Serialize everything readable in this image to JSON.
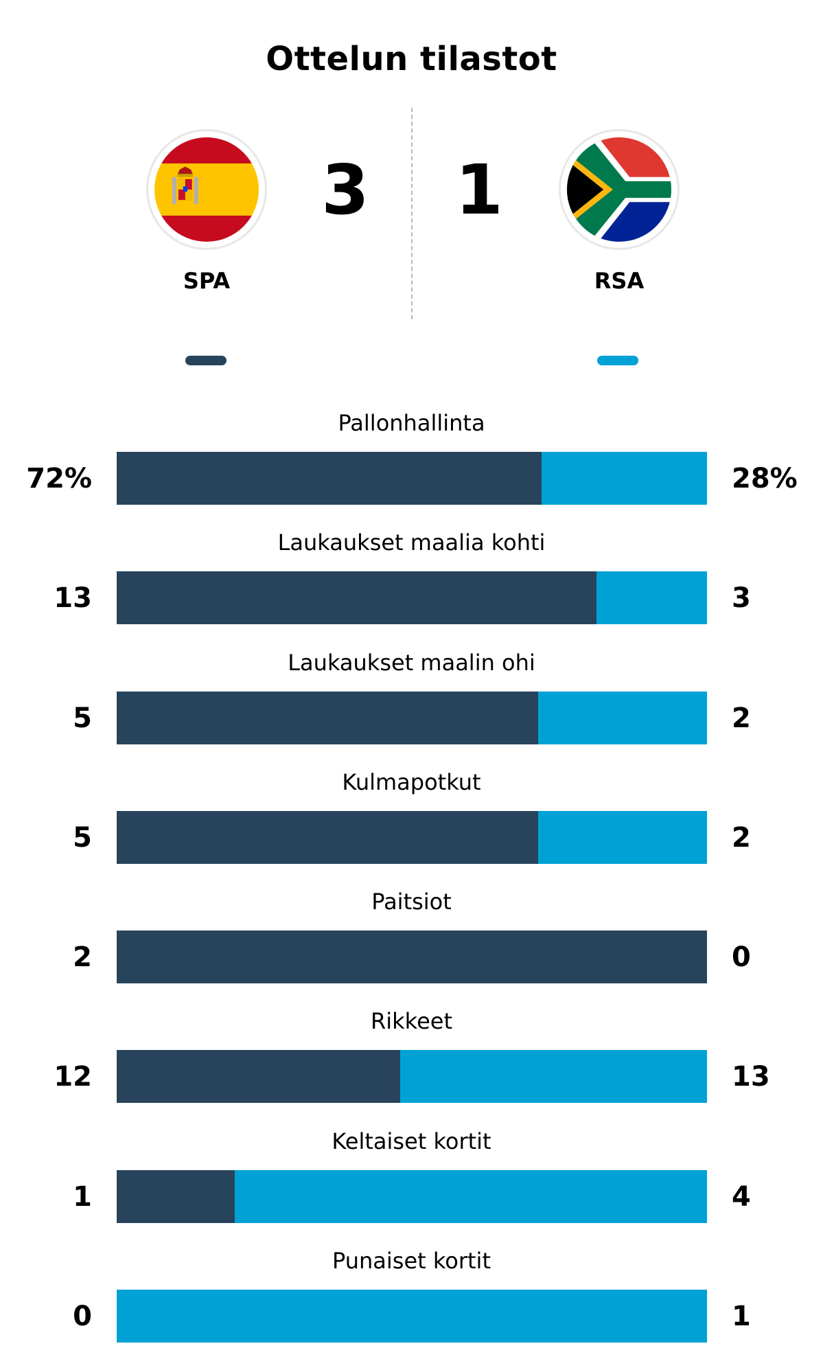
{
  "header": {
    "title": "Ottelun tilastot"
  },
  "teams": {
    "home": {
      "abbr": "SPA",
      "score": "3",
      "flag_icon": "spain-flag-icon",
      "color": "#27445c"
    },
    "away": {
      "abbr": "RSA",
      "score": "1",
      "flag_icon": "south-africa-flag-icon",
      "color": "#00a2d6"
    }
  },
  "chart_data": {
    "type": "bar",
    "orientation": "horizontal-stacked-share",
    "series": [
      {
        "name": "SPA",
        "color": "#27445c"
      },
      {
        "name": "RSA",
        "color": "#00a2d6"
      }
    ],
    "categories": [
      "Pallonhallinta",
      "Laukaukset maalia kohti",
      "Laukaukset maalin ohi",
      "Kulmapotkut",
      "Paitsiot",
      "Rikkeet",
      "Keltaiset kortit",
      "Punaiset kortit"
    ],
    "stats": [
      {
        "label": "Pallonhallinta",
        "home": 72,
        "away": 28,
        "home_text": "72%",
        "away_text": "28%"
      },
      {
        "label": "Laukaukset maalia kohti",
        "home": 13,
        "away": 3,
        "home_text": "13",
        "away_text": "3"
      },
      {
        "label": "Laukaukset maalin ohi",
        "home": 5,
        "away": 2,
        "home_text": "5",
        "away_text": "2"
      },
      {
        "label": "Kulmapotkut",
        "home": 5,
        "away": 2,
        "home_text": "5",
        "away_text": "2"
      },
      {
        "label": "Paitsiot",
        "home": 2,
        "away": 0,
        "home_text": "2",
        "away_text": "0"
      },
      {
        "label": "Rikkeet",
        "home": 12,
        "away": 13,
        "home_text": "12",
        "away_text": "13"
      },
      {
        "label": "Keltaiset kortit",
        "home": 1,
        "away": 4,
        "home_text": "1",
        "away_text": "4"
      },
      {
        "label": "Punaiset kortit",
        "home": 0,
        "away": 1,
        "home_text": "0",
        "away_text": "1"
      }
    ]
  }
}
